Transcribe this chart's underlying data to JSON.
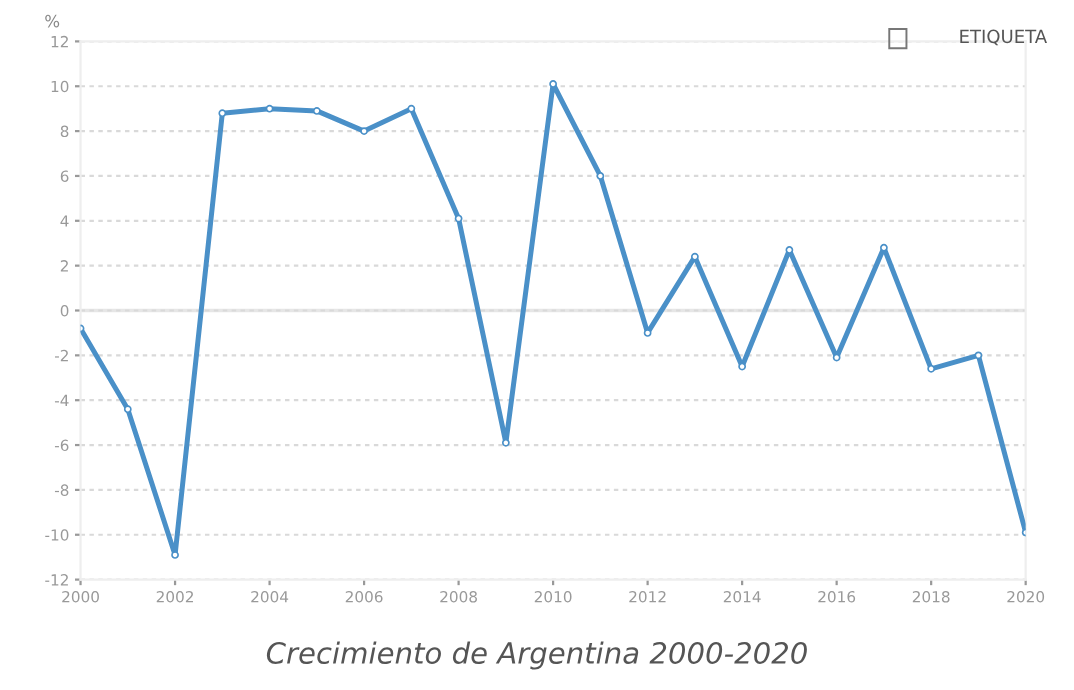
{
  "chart_data": {
    "type": "line",
    "title": "Crecimiento de Argentina 2000-2020",
    "ylabel": "%",
    "x": [
      2000,
      2001,
      2002,
      2003,
      2004,
      2005,
      2006,
      2007,
      2008,
      2009,
      2010,
      2011,
      2012,
      2013,
      2014,
      2015,
      2016,
      2017,
      2018,
      2019,
      2020
    ],
    "series": [
      {
        "color": "#4a90c8",
        "values": [
          -0.8,
          -4.4,
          -10.9,
          8.8,
          9.0,
          8.9,
          8.0,
          9.0,
          4.1,
          -5.9,
          10.1,
          6.0,
          -1.0,
          2.4,
          -2.5,
          2.7,
          -2.1,
          2.8,
          -2.6,
          -2.0,
          -9.9
        ]
      }
    ],
    "xlim": [
      2000,
      2020
    ],
    "xticks": [
      2000,
      2002,
      2004,
      2006,
      2008,
      2010,
      2012,
      2014,
      2016,
      2018,
      2020
    ],
    "ylim": [
      -12,
      12
    ],
    "yticks": [
      -12,
      -10,
      -8,
      -6,
      -4,
      -2,
      0,
      2,
      4,
      6,
      8,
      10,
      12
    ],
    "ref_lines": [
      {
        "axis": "y",
        "value": 0,
        "color": "#e6e6e6",
        "line_style": "solid"
      }
    ],
    "annotations": [
      "ETIQUETA"
    ],
    "grid": "y",
    "marker": "circle",
    "line_style": "solid",
    "legend": false
  }
}
